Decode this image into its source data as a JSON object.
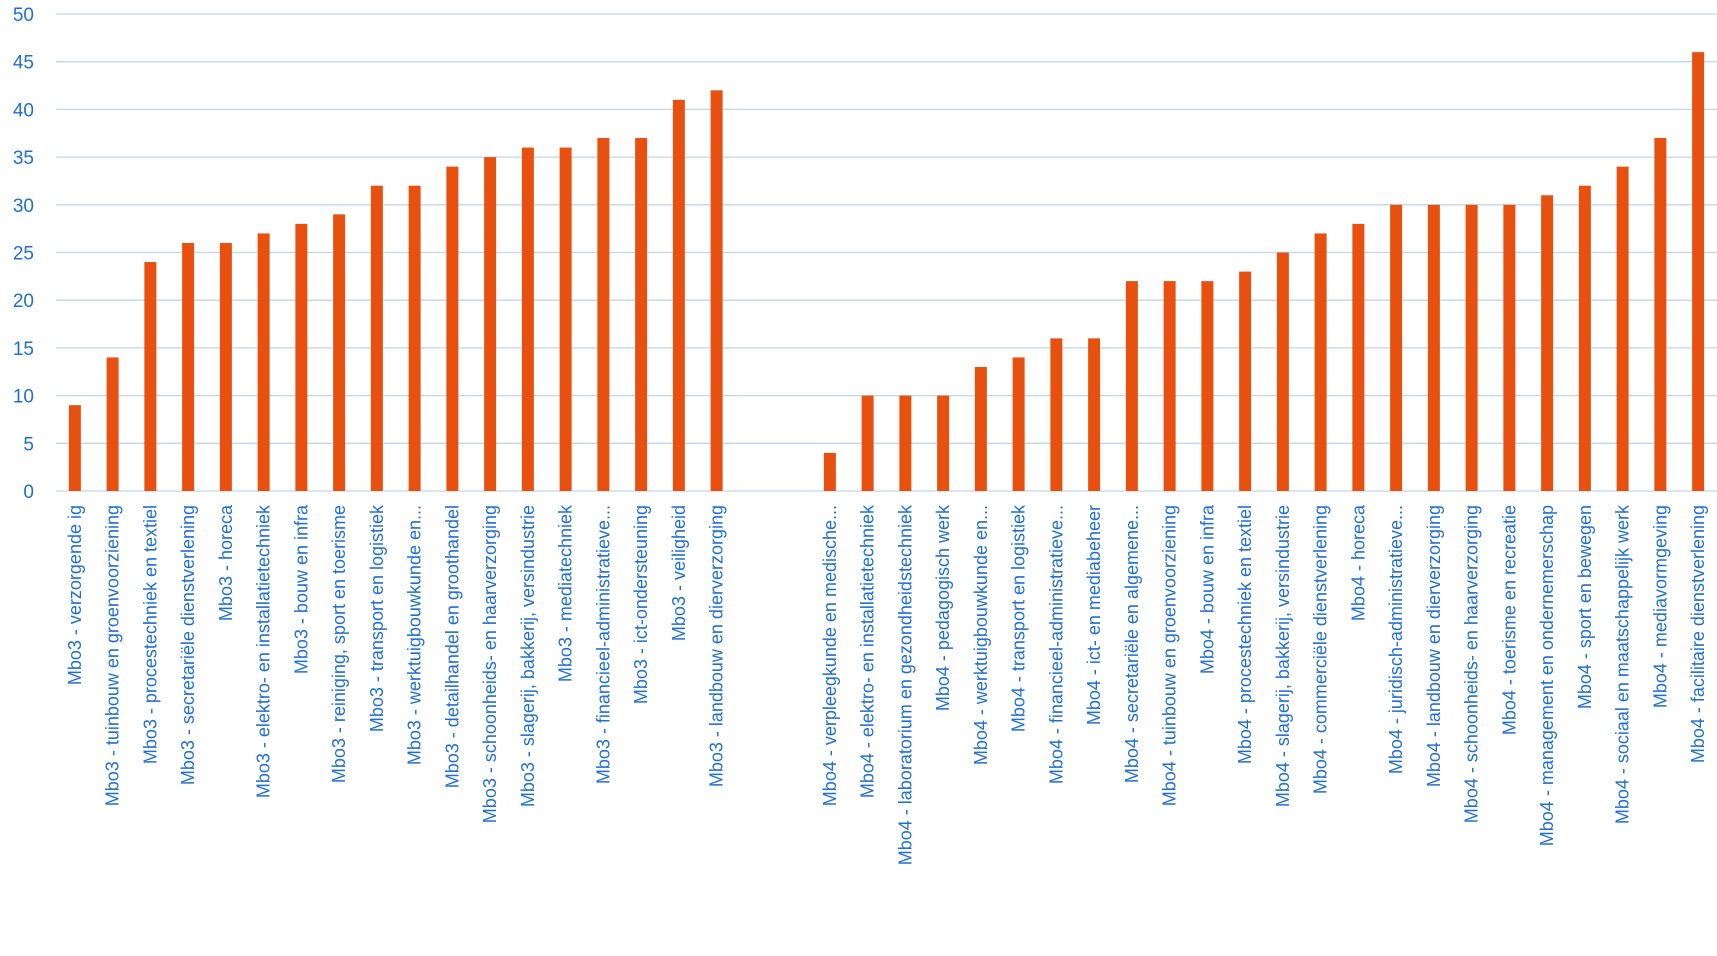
{
  "chart_data": {
    "type": "bar",
    "title": "",
    "xlabel": "",
    "ylabel": "",
    "ylim": [
      0,
      50
    ],
    "yticks": [
      0,
      5,
      10,
      15,
      20,
      25,
      30,
      35,
      40,
      45,
      50
    ],
    "grid": true,
    "legend": "none",
    "colors": {
      "bar": "#e8500f",
      "grid": "#bdd7ee",
      "text": "#1f6fd1"
    },
    "categories": [
      "Mbo3 - verzorgende ig",
      "Mbo3 - tuinbouw en groenvoorziening",
      "Mbo3 - procestechniek en textiel",
      "Mbo3 - secretariële dienstverlening",
      "Mbo3 - horeca",
      "Mbo3 - elektro- en installatietechniek",
      "Mbo3 - bouw en infra",
      "Mbo3 - reiniging, sport en toerisme",
      "Mbo3 - transport en logistiek",
      "Mbo3 - werktuigbouwkunde en...",
      "Mbo3 - detailhandel en groothandel",
      "Mbo3 - schoonheids- en haarverzorging",
      "Mbo3 - slagerij, bakkerij, versindustrie",
      "Mbo3 - mediatechniek",
      "Mbo3 - financieel-administratieve...",
      "Mbo3 - ict-ondersteuning",
      "Mbo3 - veiligheid",
      "Mbo3 - landbouw en dierverzorging",
      "",
      "",
      "Mbo4 - verpleegkunde en medische...",
      "Mbo4 - elektro- en installatietechniek",
      "Mbo4 - laboratorium en gezondheidstechniek",
      "Mbo4 - pedagogisch werk",
      "Mbo4 - werktuigbouwkunde en...",
      "Mbo4 - transport en logistiek",
      "Mbo4 - financieel-administratieve...",
      "Mbo4 - ict- en mediabeheer",
      "Mbo4 - secretariële en algemene...",
      "Mbo4 - tuinbouw en groenvoorziening",
      "Mbo4 - bouw en infra",
      "Mbo4 - procestechniek en textiel",
      "Mbo4 - slagerij, bakkerij, versindustrie",
      "Mbo4 - commerciële dienstverlening",
      "Mbo4 - horeca",
      "Mbo4 - juridisch-administratieve...",
      "Mbo4 - landbouw en dierverzorging",
      "Mbo4 - schoonheids- en haarverzorging",
      "Mbo4 - toerisme en recreatie",
      "Mbo4 - management en ondernemerschap",
      "Mbo4 - sport en bewegen",
      "Mbo4 - sociaal en maatschappelijk werk",
      "Mbo4 - mediavormgeving",
      "Mbo4 - facilitaire dienstverlening"
    ],
    "values": [
      9,
      14,
      24,
      26,
      26,
      27,
      28,
      29,
      32,
      32,
      34,
      35,
      36,
      36,
      37,
      37,
      41,
      42,
      null,
      null,
      4,
      10,
      10,
      10,
      13,
      14,
      16,
      16,
      22,
      22,
      22,
      23,
      25,
      27,
      28,
      30,
      30,
      30,
      30,
      31,
      32,
      34,
      37,
      46
    ]
  }
}
